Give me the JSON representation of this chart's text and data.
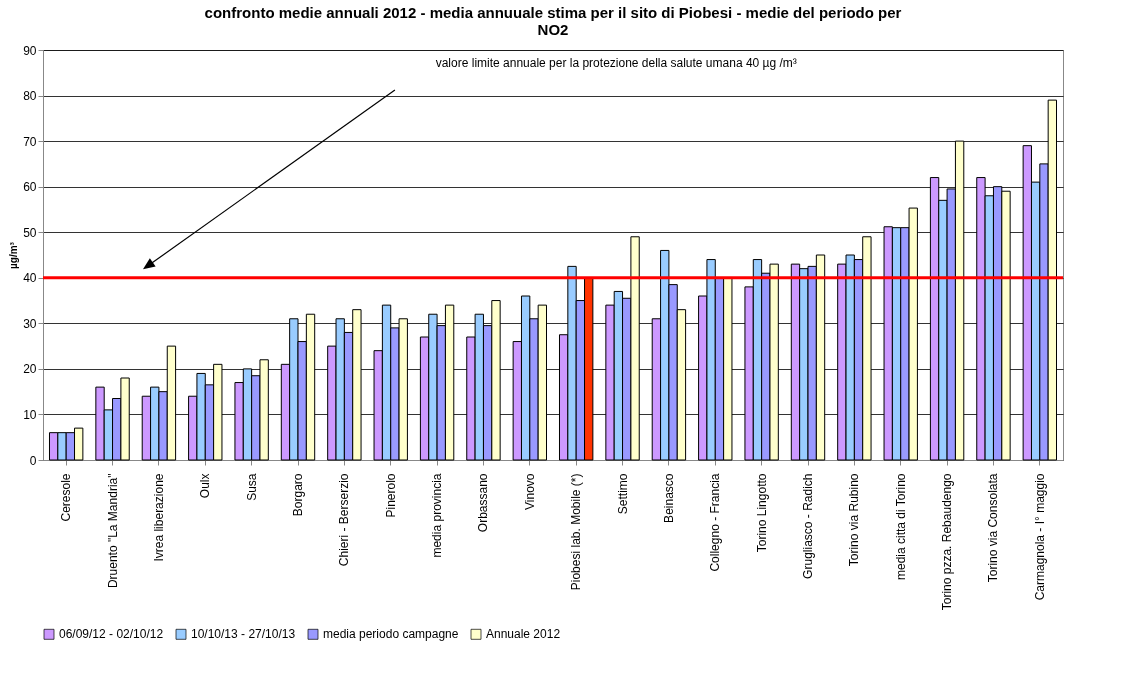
{
  "chart_data": {
    "type": "bar",
    "title": "confronto medie annuali  2012 - media annuuale stima per il sito di Piobesi - medie del periodo per NO2",
    "ylabel": "µg/m³",
    "categories": [
      "Ceresole",
      "Druento \"La Mandria\"",
      "Ivrea liberazione",
      "Oulx",
      "Susa",
      "Borgaro",
      "Chieri - Berserzio",
      "Pinerolo",
      "media provincia",
      "Orbassano",
      "Vinovo",
      "Piobesi lab. Mobile (*)",
      "Settimo",
      "Beinasco",
      "Collegno - Francia",
      "Torino Lingotto",
      "Grugliasco - Radich",
      "Torino via Rubino",
      "media citta di Torino",
      "Torino pzza. Rebaudengo",
      "Torino via Consolata",
      "Carmagnola - I° maggio"
    ],
    "series": [
      {
        "name": "06/09/12 - 02/10/12",
        "color": "#cc99ff",
        "values": [
          6,
          16,
          14,
          14,
          17,
          21,
          25,
          24,
          27,
          27,
          26,
          27.5,
          34,
          31,
          36,
          38,
          43,
          43,
          51.2,
          62,
          62,
          69
        ]
      },
      {
        "name": "10/10/13 - 27/10/13",
        "color": "#99ccff",
        "values": [
          6,
          11,
          16,
          19,
          20,
          31,
          31,
          34,
          32,
          32,
          36,
          42.5,
          37,
          46,
          44,
          44,
          42,
          45,
          51,
          57,
          58,
          61
        ]
      },
      {
        "name": "media periodo campagne",
        "color": "#9999ff",
        "values": [
          6,
          13.5,
          15,
          16.5,
          18.5,
          26,
          28,
          29,
          29.5,
          29.5,
          31,
          35,
          35.5,
          38.5,
          40,
          41,
          42.5,
          44,
          51,
          59.5,
          60,
          65
        ]
      },
      {
        "name": "Annuale 2012",
        "color": "#ffffcc",
        "colors": [
          "#ffffcc",
          "#ffffcc",
          "#ffffcc",
          "#ffffcc",
          "#ffffcc",
          "#ffffcc",
          "#ffffcc",
          "#ffffcc",
          "#ffffcc",
          "#ffffcc",
          "#ffffcc",
          "#ff3300",
          "#ffffcc",
          "#ffffcc",
          "#ffffcc",
          "#ffffcc",
          "#ffffcc",
          "#ffffcc",
          "#ffffcc",
          "#ffffcc",
          "#ffffcc",
          "#ffffcc"
        ],
        "values": [
          7,
          18,
          25,
          21,
          22,
          32,
          33,
          31,
          34,
          35,
          34,
          40,
          49,
          33,
          40,
          43,
          45,
          49,
          55.3,
          70,
          59,
          79
        ]
      }
    ],
    "ylim": [
      0,
      90
    ],
    "yticks": [
      0,
      10,
      20,
      30,
      40,
      50,
      60,
      70,
      80,
      90
    ],
    "grid": "y",
    "legend": "bottom",
    "ref_lines": [
      {
        "axis": "y",
        "value": 40,
        "color": "#ff0000"
      }
    ],
    "annotations": [
      "valore limite annuale per la protezione della salute umana 40 µg /m³"
    ]
  }
}
